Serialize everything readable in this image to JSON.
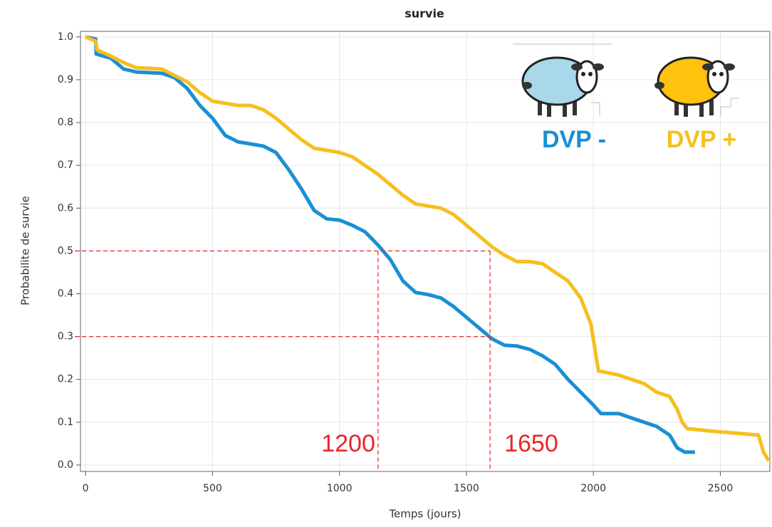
{
  "chart_data": {
    "type": "line",
    "title": "survie",
    "x_label": "Temps (jours)",
    "y_label": "Probabilite de survie",
    "xlim": [
      -20,
      2695
    ],
    "ylim": [
      -0.015,
      1.013
    ],
    "xticks": [
      0,
      500,
      1000,
      1500,
      2000,
      2500
    ],
    "yticks": [
      {
        "value": 0,
        "label": "0.0"
      },
      0.1,
      0.2,
      0.3,
      0.4,
      0.5,
      0.6,
      0.7,
      0.8,
      0.9,
      {
        "value": 1,
        "label": "1.0"
      }
    ],
    "grid": true,
    "reference_hlines": [
      0.5,
      0.3
    ],
    "reference_vlines": [
      1152,
      1593
    ],
    "annotations": [
      "1200",
      "1650"
    ],
    "series": [
      {
        "name": "DVP -",
        "color": "#1a8fd4",
        "x": [
          0,
          40,
          42,
          100,
          150,
          200,
          300,
          350,
          400,
          450,
          500,
          550,
          600,
          700,
          750,
          800,
          850,
          900,
          950,
          1000,
          1050,
          1100,
          1150,
          1200,
          1250,
          1300,
          1350,
          1400,
          1450,
          1500,
          1550,
          1600,
          1650,
          1700,
          1750,
          1800,
          1850,
          1900,
          1950,
          2000,
          2030,
          2100,
          2150,
          2200,
          2250,
          2300,
          2330,
          2360,
          2400
        ],
        "values": [
          1.0,
          0.995,
          0.96,
          0.95,
          0.925,
          0.918,
          0.915,
          0.905,
          0.88,
          0.84,
          0.81,
          0.77,
          0.755,
          0.745,
          0.73,
          0.69,
          0.645,
          0.595,
          0.575,
          0.572,
          0.56,
          0.545,
          0.515,
          0.48,
          0.43,
          0.403,
          0.398,
          0.39,
          0.37,
          0.345,
          0.32,
          0.295,
          0.28,
          0.278,
          0.27,
          0.255,
          0.235,
          0.2,
          0.17,
          0.14,
          0.12,
          0.12,
          0.11,
          0.1,
          0.09,
          0.07,
          0.04,
          0.03,
          0.03
        ]
      },
      {
        "name": "DVP +",
        "color": "#f5bf1e",
        "x": [
          0,
          40,
          45,
          100,
          150,
          200,
          300,
          350,
          400,
          450,
          500,
          550,
          600,
          650,
          700,
          750,
          800,
          850,
          900,
          950,
          1000,
          1050,
          1100,
          1150,
          1200,
          1250,
          1300,
          1350,
          1400,
          1450,
          1500,
          1550,
          1600,
          1650,
          1700,
          1750,
          1800,
          1850,
          1900,
          1950,
          1990,
          2020,
          2100,
          2150,
          2200,
          2250,
          2300,
          2330,
          2350,
          2370,
          2450,
          2550,
          2650,
          2670,
          2690
        ],
        "values": [
          1.0,
          0.99,
          0.97,
          0.955,
          0.94,
          0.928,
          0.925,
          0.91,
          0.895,
          0.87,
          0.85,
          0.845,
          0.84,
          0.84,
          0.83,
          0.81,
          0.785,
          0.76,
          0.74,
          0.735,
          0.73,
          0.72,
          0.7,
          0.68,
          0.655,
          0.63,
          0.61,
          0.605,
          0.6,
          0.585,
          0.56,
          0.535,
          0.51,
          0.49,
          0.475,
          0.475,
          0.47,
          0.45,
          0.43,
          0.39,
          0.33,
          0.22,
          0.21,
          0.2,
          0.19,
          0.17,
          0.16,
          0.13,
          0.1,
          0.085,
          0.08,
          0.075,
          0.07,
          0.03,
          0.01
        ]
      }
    ]
  }
}
